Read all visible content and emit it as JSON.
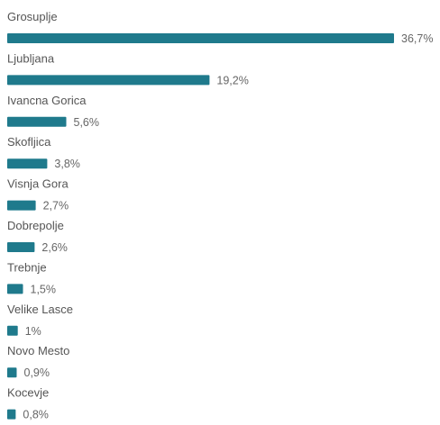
{
  "chart_data": {
    "type": "bar",
    "orientation": "horizontal",
    "categories": [
      "Grosuplje",
      "Ljubljana",
      "Ivancna Gorica",
      "Skofljica",
      "Visnja Gora",
      "Dobrepolje",
      "Trebnje",
      "Velike Lasce",
      "Novo Mesto",
      "Kocevje"
    ],
    "values": [
      36.7,
      19.2,
      5.6,
      3.8,
      2.7,
      2.6,
      1.5,
      1,
      0.9,
      0.8
    ],
    "value_labels": [
      "36,7%",
      "19,2%",
      "5,6%",
      "3,8%",
      "2,7%",
      "2,6%",
      "1,5%",
      "1%",
      "0,9%",
      "0,8%"
    ],
    "unit": "%",
    "title": "",
    "xlabel": "",
    "ylabel": "",
    "xlim": [
      0,
      36.7
    ],
    "grid": false,
    "legend": "none",
    "bar_color": "#1f7a8c",
    "label_color": "#555555"
  }
}
